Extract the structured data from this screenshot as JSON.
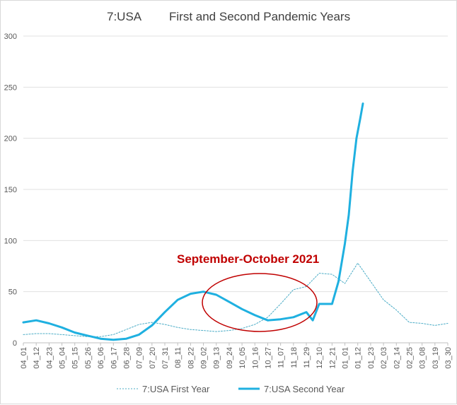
{
  "chart_data": {
    "type": "line",
    "title_left": "7:USA",
    "title_right": "First and Second Pandemic Years",
    "xlabel": "",
    "ylabel": "",
    "ylim": [
      0,
      300
    ],
    "yticks": [
      0,
      50,
      100,
      150,
      200,
      250,
      300
    ],
    "grid": "horizontal",
    "legend_position": "bottom",
    "annotation": "September-October 2021",
    "categories": [
      "04_01",
      "04_12",
      "04_23",
      "05_04",
      "05_15",
      "05_26",
      "06_06",
      "06_17",
      "06_28",
      "07_09",
      "07_20",
      "07_31",
      "08_11",
      "08_22",
      "09_02",
      "09_13",
      "09_24",
      "10_05",
      "10_16",
      "10_27",
      "11_07",
      "11_18",
      "11_29",
      "12_10",
      "12_21",
      "01_01",
      "01_12",
      "01_23",
      "02_03",
      "02_14",
      "02_25",
      "03_08",
      "03_19",
      "03_30"
    ],
    "series": [
      {
        "name": "7:USA First Year",
        "style": "dashed",
        "color": "#4bacc6",
        "x": [
          0,
          1,
          2,
          3,
          4,
          5,
          6,
          7,
          8,
          9,
          10,
          11,
          12,
          13,
          14,
          15,
          16,
          17,
          18,
          19,
          20,
          21,
          22,
          23,
          24,
          25,
          26,
          27,
          28,
          29,
          30,
          31,
          32,
          33
        ],
        "values": [
          8,
          9,
          9,
          8,
          7,
          6,
          6,
          8,
          13,
          18,
          20,
          18,
          15,
          13,
          12,
          11,
          12,
          14,
          18,
          25,
          38,
          52,
          55,
          68,
          67,
          58,
          78,
          60,
          42,
          32,
          20,
          19,
          17,
          19
        ]
      },
      {
        "name": "7:USA Second Year",
        "style": "solid",
        "color": "#1fb0e0",
        "x": [
          0,
          1,
          2,
          3,
          4,
          5,
          6,
          7,
          8,
          9,
          10,
          11,
          12,
          13,
          14,
          15,
          16,
          17,
          18,
          19,
          20,
          21,
          22,
          22.5,
          23,
          24,
          24.5,
          25,
          25.3,
          25.6,
          25.9,
          26.2,
          26.4
        ],
        "values": [
          20,
          22,
          19,
          15,
          10,
          7,
          4,
          3,
          4,
          8,
          17,
          30,
          42,
          48,
          50,
          47,
          40,
          33,
          27,
          22,
          23,
          25,
          30,
          22,
          38,
          38,
          60,
          97,
          125,
          168,
          200,
          220,
          234
        ]
      }
    ]
  }
}
